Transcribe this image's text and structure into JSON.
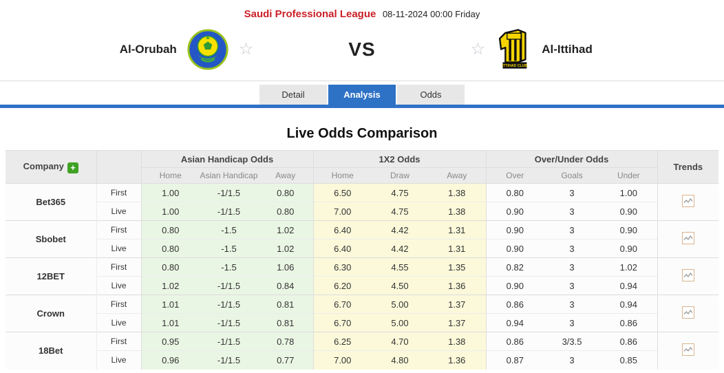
{
  "header": {
    "league": "Saudi Professional League",
    "datetime": "08-11-2024 00:00 Friday",
    "home_team": "Al-Orubah",
    "away_team": "Al-Ittihad",
    "away_logo_banner": "ITTIHAD CLUB",
    "vs": "VS"
  },
  "icons": {
    "favorite_star": "☆",
    "add_plus": "+"
  },
  "tabs": [
    {
      "label": "Detail",
      "active": false
    },
    {
      "label": "Analysis",
      "active": true
    },
    {
      "label": "Odds",
      "active": false
    }
  ],
  "section_title": "Live Odds Comparison",
  "colors": {
    "accent": "#2e72c6",
    "league-red": "#cb2027",
    "ah-green": "#eaf6e4",
    "x12-yellow": "#fbf9da",
    "plus-green": "#3fa223"
  },
  "table": {
    "company_header": "Company",
    "trends_header": "Trends",
    "groups": [
      {
        "label": "Asian Handicap Odds",
        "cols": [
          "Home",
          "Asian Handicap",
          "Away"
        ]
      },
      {
        "label": "1X2 Odds",
        "cols": [
          "Home",
          "Draw",
          "Away"
        ]
      },
      {
        "label": "Over/Under Odds",
        "cols": [
          "Over",
          "Goals",
          "Under"
        ]
      }
    ],
    "companies": [
      {
        "name": "Bet365",
        "rows": [
          {
            "period": "First",
            "ah": [
              "1.00",
              "-1/1.5",
              "0.80"
            ],
            "x12": [
              "6.50",
              "4.75",
              "1.38"
            ],
            "ou": [
              "0.80",
              "3",
              "1.00"
            ]
          },
          {
            "period": "Live",
            "ah": [
              "1.00",
              "-1/1.5",
              "0.80"
            ],
            "x12": [
              "7.00",
              "4.75",
              "1.38"
            ],
            "ou": [
              "0.90",
              "3",
              "0.90"
            ]
          }
        ]
      },
      {
        "name": "Sbobet",
        "rows": [
          {
            "period": "First",
            "ah": [
              "0.80",
              "-1.5",
              "1.02"
            ],
            "x12": [
              "6.40",
              "4.42",
              "1.31"
            ],
            "ou": [
              "0.90",
              "3",
              "0.90"
            ]
          },
          {
            "period": "Live",
            "ah": [
              "0.80",
              "-1.5",
              "1.02"
            ],
            "x12": [
              "6.40",
              "4.42",
              "1.31"
            ],
            "ou": [
              "0.90",
              "3",
              "0.90"
            ]
          }
        ]
      },
      {
        "name": "12BET",
        "rows": [
          {
            "period": "First",
            "ah": [
              "0.80",
              "-1.5",
              "1.06"
            ],
            "x12": [
              "6.30",
              "4.55",
              "1.35"
            ],
            "ou": [
              "0.82",
              "3",
              "1.02"
            ]
          },
          {
            "period": "Live",
            "ah": [
              "1.02",
              "-1/1.5",
              "0.84"
            ],
            "x12": [
              "6.20",
              "4.50",
              "1.36"
            ],
            "ou": [
              "0.90",
              "3",
              "0.94"
            ]
          }
        ]
      },
      {
        "name": "Crown",
        "rows": [
          {
            "period": "First",
            "ah": [
              "1.01",
              "-1/1.5",
              "0.81"
            ],
            "x12": [
              "6.70",
              "5.00",
              "1.37"
            ],
            "ou": [
              "0.86",
              "3",
              "0.94"
            ]
          },
          {
            "period": "Live",
            "ah": [
              "1.01",
              "-1/1.5",
              "0.81"
            ],
            "x12": [
              "6.70",
              "5.00",
              "1.37"
            ],
            "ou": [
              "0.94",
              "3",
              "0.86"
            ]
          }
        ]
      },
      {
        "name": "18Bet",
        "rows": [
          {
            "period": "First",
            "ah": [
              "0.95",
              "-1/1.5",
              "0.78"
            ],
            "x12": [
              "6.25",
              "4.70",
              "1.38"
            ],
            "ou": [
              "0.86",
              "3/3.5",
              "0.86"
            ]
          },
          {
            "period": "Live",
            "ah": [
              "0.96",
              "-1/1.5",
              "0.77"
            ],
            "x12": [
              "7.00",
              "4.80",
              "1.36"
            ],
            "ou": [
              "0.87",
              "3",
              "0.85"
            ]
          }
        ]
      }
    ]
  }
}
